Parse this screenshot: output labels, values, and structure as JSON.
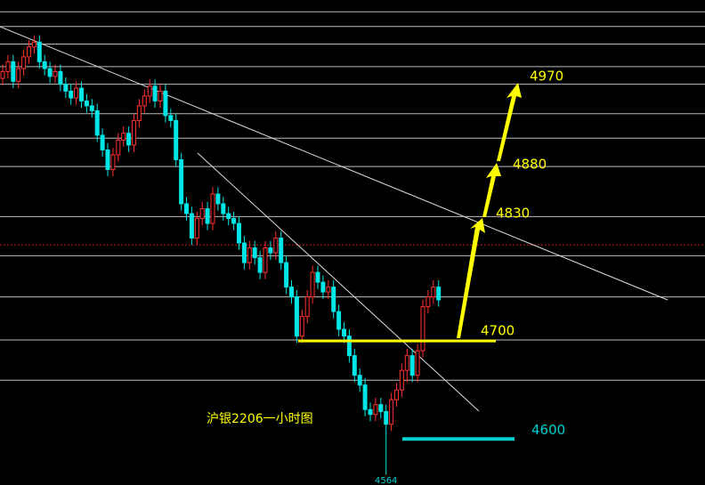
{
  "chart_data": {
    "type": "candlestick",
    "title": "沪银2206一小时图",
    "up_color": "#ff3030",
    "down_color": "#00e5e5",
    "ylim": [
      4553,
      5048
    ],
    "levels": [
      5036,
      5021,
      5003,
      4980,
      4962,
      4932,
      4907,
      4878,
      4827,
      4787,
      4745,
      4701,
      4660
    ],
    "ref_line": 4798,
    "open": [
      4968,
      4975,
      4985,
      4965,
      4978,
      4990,
      5000,
      5005,
      4985,
      4978,
      4970,
      4975,
      4962,
      4955,
      4948,
      4958,
      4945,
      4940,
      4935,
      4910,
      4895,
      4875,
      4890,
      4905,
      4912,
      4900,
      4925,
      4940,
      4950,
      4960,
      4945,
      4955,
      4930,
      4925,
      4885,
      4840,
      4830,
      4805,
      4825,
      4835,
      4820,
      4850,
      4840,
      4830,
      4825,
      4820,
      4800,
      4780,
      4795,
      4785,
      4770,
      4795,
      4790,
      4805,
      4780,
      4755,
      4745,
      4705,
      4725,
      4745,
      4770,
      4760,
      4750,
      4755,
      4730,
      4712,
      4705,
      4685,
      4665,
      4655,
      4630,
      4625,
      4635,
      4628,
      4615,
      4640,
      4650,
      4670,
      4685,
      4665,
      4690,
      4735,
      4745,
      4755
    ],
    "high": [
      4982,
      4992,
      4992,
      4985,
      4997,
      5007,
      5012,
      5012,
      4992,
      4985,
      4982,
      4982,
      4969,
      4962,
      4965,
      4965,
      4952,
      4947,
      4942,
      4917,
      4902,
      4897,
      4912,
      4919,
      4919,
      4932,
      4947,
      4957,
      4967,
      4967,
      4962,
      4962,
      4937,
      4932,
      4892,
      4847,
      4837,
      4832,
      4842,
      4842,
      4857,
      4857,
      4847,
      4837,
      4832,
      4827,
      4807,
      4802,
      4802,
      4792,
      4802,
      4802,
      4812,
      4812,
      4787,
      4762,
      4752,
      4732,
      4752,
      4777,
      4777,
      4767,
      4762,
      4762,
      4737,
      4719,
      4712,
      4692,
      4672,
      4662,
      4637,
      4642,
      4642,
      4635,
      4647,
      4657,
      4677,
      4692,
      4692,
      4697,
      4742,
      4752,
      4762,
      4762
    ],
    "low": [
      4961,
      4968,
      4958,
      4958,
      4971,
      4983,
      4993,
      4978,
      4971,
      4963,
      4963,
      4955,
      4948,
      4941,
      4941,
      4938,
      4933,
      4928,
      4903,
      4888,
      4868,
      4868,
      4883,
      4898,
      4893,
      4893,
      4918,
      4933,
      4943,
      4938,
      4938,
      4923,
      4918,
      4878,
      4833,
      4823,
      4798,
      4798,
      4818,
      4813,
      4813,
      4833,
      4823,
      4818,
      4813,
      4793,
      4773,
      4773,
      4778,
      4763,
      4763,
      4783,
      4783,
      4773,
      4748,
      4738,
      4698,
      4698,
      4718,
      4738,
      4753,
      4743,
      4743,
      4723,
      4705,
      4698,
      4678,
      4658,
      4648,
      4623,
      4618,
      4618,
      4621,
      4564,
      4608,
      4633,
      4643,
      4658,
      4658,
      4658,
      4683,
      4728,
      4738,
      4735
    ],
    "close": [
      4975,
      4985,
      4965,
      4978,
      4990,
      5000,
      5005,
      4985,
      4978,
      4970,
      4975,
      4962,
      4955,
      4948,
      4958,
      4945,
      4940,
      4935,
      4910,
      4895,
      4875,
      4890,
      4905,
      4912,
      4900,
      4925,
      4940,
      4950,
      4960,
      4945,
      4955,
      4930,
      4925,
      4885,
      4840,
      4830,
      4805,
      4825,
      4835,
      4820,
      4850,
      4840,
      4830,
      4825,
      4820,
      4800,
      4780,
      4795,
      4785,
      4770,
      4795,
      4790,
      4805,
      4780,
      4755,
      4745,
      4705,
      4725,
      4745,
      4770,
      4760,
      4750,
      4755,
      4730,
      4712,
      4705,
      4685,
      4665,
      4655,
      4630,
      4625,
      4635,
      4628,
      4615,
      4640,
      4650,
      4670,
      4685,
      4665,
      4690,
      4735,
      4745,
      4755,
      4742
    ],
    "annotations": [
      {
        "value": 4970,
        "color": "#ffff00"
      },
      {
        "value": 4880,
        "color": "#ffff00"
      },
      {
        "value": 4830,
        "color": "#ffff00"
      },
      {
        "value": 4700,
        "color": "#ffff00"
      },
      {
        "value": 4600,
        "color": "#00d0d0"
      }
    ]
  }
}
